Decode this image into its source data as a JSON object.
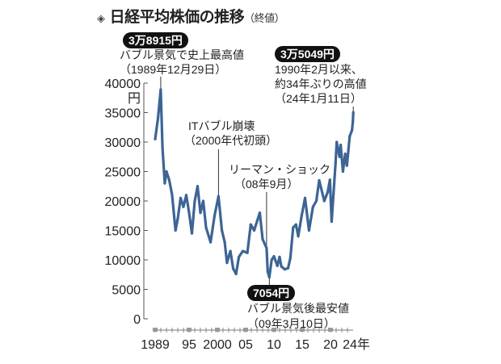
{
  "title": "日経平均株価の推移",
  "title_sub": "（終値）",
  "annotations": {
    "peak_value": "3万8915円",
    "peak_line1": "バブル景気で史上最高値",
    "peak_line2": "（1989年12月29日）",
    "recent_value": "3万5049円",
    "recent_line1": "1990年2月以来、",
    "recent_line2": "約34年ぶりの高値",
    "recent_line3": "（24年1月11日）",
    "it_line1": "ITバブル崩壊",
    "it_line2": "（2000年代初頭）",
    "lehman_line1": "リーマン・ショック",
    "lehman_line2": "（08年9月）",
    "low_value": "7054円",
    "low_line1": "バブル景気後最安値",
    "low_line2": "（09年3月10日）"
  },
  "chart_data": {
    "type": "line",
    "title": "日経平均株価の推移（終値）",
    "ylabel": "円",
    "xlabel": "年",
    "ylim": [
      0,
      40000
    ],
    "xlim": [
      1989,
      2024
    ],
    "y_ticks": [
      "0",
      "5000",
      "10000",
      "15000",
      "20000",
      "25000",
      "30000",
      "35000",
      "40000"
    ],
    "x_ticks": [
      {
        "year": 1989,
        "label": "1989"
      },
      {
        "year": 1995,
        "label": "95"
      },
      {
        "year": 2000,
        "label": "2000"
      },
      {
        "year": 2005,
        "label": "05"
      },
      {
        "year": 2010,
        "label": "10"
      },
      {
        "year": 2015,
        "label": "15"
      },
      {
        "year": 2020,
        "label": "20"
      },
      {
        "year": 2024,
        "label": "24年"
      }
    ],
    "color": "#3d6494",
    "series": [
      {
        "name": "日経平均株価",
        "x": [
          1989.0,
          1989.5,
          1989.99,
          1990.3,
          1990.7,
          1991.0,
          1991.5,
          1992.0,
          1992.6,
          1993.0,
          1993.5,
          1994.0,
          1994.5,
          1995.0,
          1995.5,
          1996.0,
          1996.5,
          1997.0,
          1997.5,
          1998.0,
          1998.8,
          1999.5,
          2000.2,
          2000.8,
          2001.3,
          2001.7,
          2002.3,
          2002.8,
          2003.3,
          2003.8,
          2004.5,
          2005.3,
          2005.9,
          2006.5,
          2007.5,
          2008.0,
          2008.7,
          2008.9,
          2009.19,
          2009.6,
          2010.0,
          2010.6,
          2011.0,
          2011.3,
          2011.9,
          2012.5,
          2012.9,
          2013.4,
          2013.9,
          2014.3,
          2014.9,
          2015.5,
          2016.2,
          2016.9,
          2017.5,
          2018.0,
          2018.9,
          2019.5,
          2019.9,
          2020.2,
          2020.9,
          2021.1,
          2021.6,
          2021.8,
          2022.2,
          2022.6,
          2022.9,
          2023.4,
          2023.8,
          2023.95,
          2024.03
        ],
        "values": [
          30500,
          34000,
          38915,
          29000,
          23000,
          25000,
          23500,
          21000,
          15000,
          17000,
          20500,
          19000,
          21000,
          18000,
          14500,
          20000,
          22500,
          18000,
          20000,
          15500,
          13000,
          17500,
          20800,
          15000,
          13000,
          9500,
          11500,
          8500,
          7600,
          10500,
          11500,
          11200,
          16000,
          15000,
          18000,
          13500,
          12000,
          8000,
          7054,
          10000,
          10600,
          9000,
          10500,
          8900,
          8400,
          8600,
          10300,
          15500,
          16000,
          14000,
          17500,
          20500,
          15000,
          19000,
          20000,
          23500,
          20000,
          21500,
          23600,
          16500,
          26500,
          30000,
          27500,
          29500,
          25000,
          28000,
          26000,
          31000,
          32000,
          33500,
          35049
        ]
      }
    ]
  }
}
